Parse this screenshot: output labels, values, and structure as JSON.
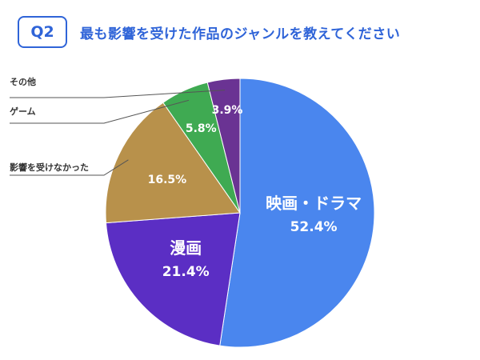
{
  "header": {
    "badge": "Q2",
    "question": "最も影響を受けた作品のジャンルを教えてください"
  },
  "colors": {
    "accent": "#2f64d8",
    "leader_line": "#555555"
  },
  "chart_data": {
    "type": "pie",
    "title": "最も影響を受けた作品のジャンルを教えてください",
    "start_angle_deg": 0,
    "direction": "clockwise",
    "slices": [
      {
        "label": "映画・ドラマ",
        "value": 52.4,
        "value_label": "52.4%",
        "color": "#4a86ee",
        "label_inside": true
      },
      {
        "label": "漫画",
        "value": 21.4,
        "value_label": "21.4%",
        "color": "#5b2ec4",
        "label_inside": true
      },
      {
        "label": "影響を受けなかった",
        "value": 16.5,
        "value_label": "16.5%",
        "color": "#b8914b",
        "label_inside": false
      },
      {
        "label": "ゲーム",
        "value": 5.8,
        "value_label": "5.8%",
        "color": "#3faa52",
        "label_inside": false
      },
      {
        "label": "その他",
        "value": 3.9,
        "value_label": "3.9%",
        "color": "#6a3393",
        "label_inside": false
      }
    ]
  }
}
